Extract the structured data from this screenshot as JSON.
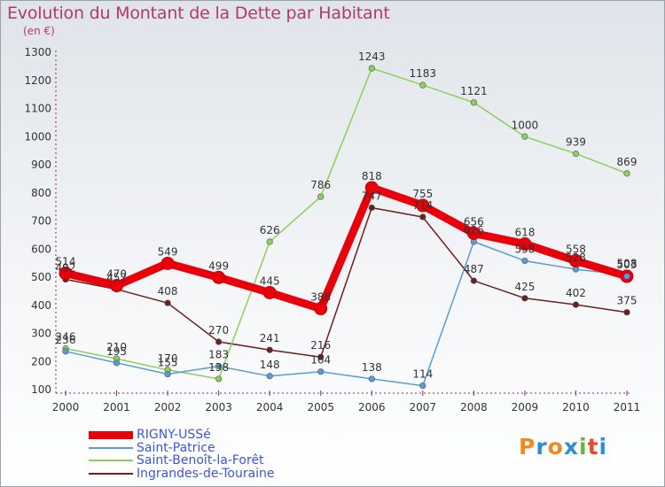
{
  "header": {
    "title": "Evolution du Montant de la Dette par Habitant",
    "subtitle": "(en €)"
  },
  "brand": {
    "text": "Proxiti",
    "letters": [
      "P",
      "r",
      "o",
      "x",
      "i",
      "t",
      "i"
    ],
    "colors": [
      "#f08a1c",
      "#2a8fd6",
      "#f08a1c",
      "#2a8fd6",
      "#62b83a",
      "#e84a2a",
      "#2a8fd6"
    ]
  },
  "chart_data": {
    "type": "line",
    "title": "Evolution du Montant de la Dette par Habitant",
    "subtitle": "(en €)",
    "xlabel": "",
    "ylabel": "",
    "categories": [
      "2000",
      "2001",
      "2002",
      "2003",
      "2004",
      "2005",
      "2006",
      "2007",
      "2008",
      "2009",
      "2010",
      "2011"
    ],
    "ylim": [
      100,
      1300
    ],
    "yticks": [
      100,
      200,
      300,
      400,
      500,
      600,
      700,
      800,
      900,
      1000,
      1100,
      1200,
      1300
    ],
    "grid": false,
    "legend_position": "bottom-left",
    "series": [
      {
        "name": "RIGNY-USSé",
        "color": "#e8000b",
        "width": 9,
        "values": [
          514,
          470,
          549,
          499,
          445,
          388,
          818,
          755,
          656,
          618,
          558,
          503
        ],
        "labels": [
          "514",
          "470",
          "549",
          "499",
          "445",
          "388",
          "818",
          "755",
          "656",
          "618",
          "558",
          "503"
        ]
      },
      {
        "name": "Saint-Patrice",
        "color": "#5b9bd5",
        "width": 1.5,
        "values": [
          236,
          195,
          155,
          183,
          148,
          164,
          138,
          114,
          626,
          558,
          528,
          508
        ],
        "labels": [
          "236",
          "195",
          "155",
          "183",
          "148",
          "164",
          "138",
          "114",
          "626",
          "558",
          "528",
          "508"
        ]
      },
      {
        "name": "Saint-Benoît-la-Forêt",
        "color": "#8ccf5a",
        "width": 1.5,
        "values": [
          246,
          210,
          170,
          138,
          626,
          786,
          1243,
          1183,
          1121,
          1000,
          939,
          869
        ],
        "labels": [
          "246",
          "210",
          "170",
          "138",
          "626",
          "786",
          "1243",
          "1183",
          "1121",
          "1000",
          "939",
          "869"
        ]
      },
      {
        "name": "Ingrandes-de-Touraine",
        "color": "#6b1f1f",
        "width": 1.5,
        "values": [
          492,
          457,
          408,
          270,
          241,
          216,
          747,
          714,
          487,
          425,
          402,
          375
        ],
        "labels": [
          "492",
          "457",
          "408",
          "270",
          "241",
          "216",
          "747",
          "714",
          "487",
          "425",
          "402",
          "375"
        ]
      }
    ]
  }
}
